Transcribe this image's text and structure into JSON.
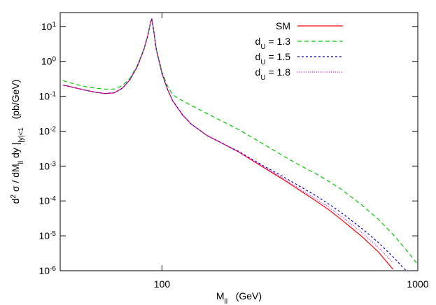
{
  "chart_data": {
    "type": "line",
    "xlabel": [
      "M",
      "ll",
      "   (GeV)"
    ],
    "ylabel": [
      "d",
      "2",
      " σ / dM",
      "ll",
      " dy |",
      "|y|<1",
      "   (pb/GeV)"
    ],
    "xlog": true,
    "ylog": true,
    "xlim": [
      40,
      1000
    ],
    "ylim": [
      1e-06,
      25
    ],
    "xticks": [
      100,
      1000
    ],
    "yticks": [
      {
        "value": 10,
        "label": [
          "10",
          "1"
        ]
      },
      {
        "value": 1,
        "label": [
          "10",
          "0"
        ]
      },
      {
        "value": 0.1,
        "label": [
          "10",
          "-1"
        ]
      },
      {
        "value": 0.01,
        "label": [
          "10",
          "-2"
        ]
      },
      {
        "value": 0.001,
        "label": [
          "10",
          "-3"
        ]
      },
      {
        "value": 0.0001,
        "label": [
          "10",
          "-4"
        ]
      },
      {
        "value": 1e-05,
        "label": [
          "10",
          "-5"
        ]
      },
      {
        "value": 1e-06,
        "label": [
          "10",
          "-6"
        ]
      }
    ],
    "legend": "top-right",
    "x": [
      41,
      45,
      50,
      55,
      60,
      65,
      70,
      75,
      80,
      85,
      88,
      90,
      91.2,
      92.5,
      95,
      100,
      105,
      110,
      120,
      130,
      150,
      175,
      200,
      250,
      300,
      350,
      400,
      450,
      500,
      600,
      700,
      800,
      900,
      1000
    ],
    "series": [
      {
        "name": "SM",
        "color": "#ff0000",
        "dash": "none",
        "values": [
          0.21,
          0.18,
          0.15,
          0.13,
          0.12,
          0.125,
          0.17,
          0.3,
          0.7,
          2.2,
          5.5,
          12,
          17,
          9,
          2.2,
          0.45,
          0.16,
          0.075,
          0.03,
          0.016,
          0.0075,
          0.0042,
          0.0025,
          0.0009,
          0.0004,
          0.00019,
          0.0001,
          5.5e-05,
          3e-05,
          1e-05,
          3.5e-06,
          1.1e-06,
          null,
          null
        ]
      },
      {
        "name": [
          "d",
          "U",
          " = 1.3"
        ],
        "color": "#00cc00",
        "dash": "6 4",
        "values": [
          0.28,
          0.23,
          0.19,
          0.17,
          0.16,
          0.16,
          0.2,
          0.33,
          0.75,
          2.3,
          5.6,
          12,
          17,
          9,
          2.3,
          0.5,
          0.2,
          0.11,
          0.075,
          0.055,
          0.032,
          0.018,
          0.011,
          0.0042,
          0.0019,
          0.001,
          0.0006,
          0.00036,
          0.00022,
          8e-05,
          3e-05,
          1.1e-05,
          4e-06,
          1.5e-06
        ]
      },
      {
        "name": [
          "d",
          "U",
          " = 1.5"
        ],
        "color": "#0000cc",
        "dash": "3 3",
        "values": [
          0.21,
          0.18,
          0.15,
          0.13,
          0.12,
          0.125,
          0.17,
          0.3,
          0.7,
          2.2,
          5.5,
          12,
          17,
          9,
          2.2,
          0.45,
          0.16,
          0.075,
          0.03,
          0.016,
          0.0075,
          0.0042,
          0.0026,
          0.001,
          0.00048,
          0.00025,
          0.00014,
          8e-05,
          4.7e-05,
          1.7e-05,
          6.5e-06,
          2.5e-06,
          1e-06,
          null
        ]
      },
      {
        "name": [
          "d",
          "U",
          " = 1.8"
        ],
        "color": "#ff00ff",
        "dash": "1 2",
        "values": [
          0.21,
          0.18,
          0.15,
          0.13,
          0.12,
          0.125,
          0.17,
          0.3,
          0.7,
          2.2,
          5.5,
          12,
          17,
          9,
          2.2,
          0.45,
          0.16,
          0.075,
          0.03,
          0.016,
          0.0075,
          0.0042,
          0.0025,
          0.00095,
          0.00043,
          0.00021,
          0.000115,
          6.5e-05,
          3.7e-05,
          1.3e-05,
          4.7e-06,
          1.7e-06,
          null,
          null
        ]
      }
    ]
  }
}
